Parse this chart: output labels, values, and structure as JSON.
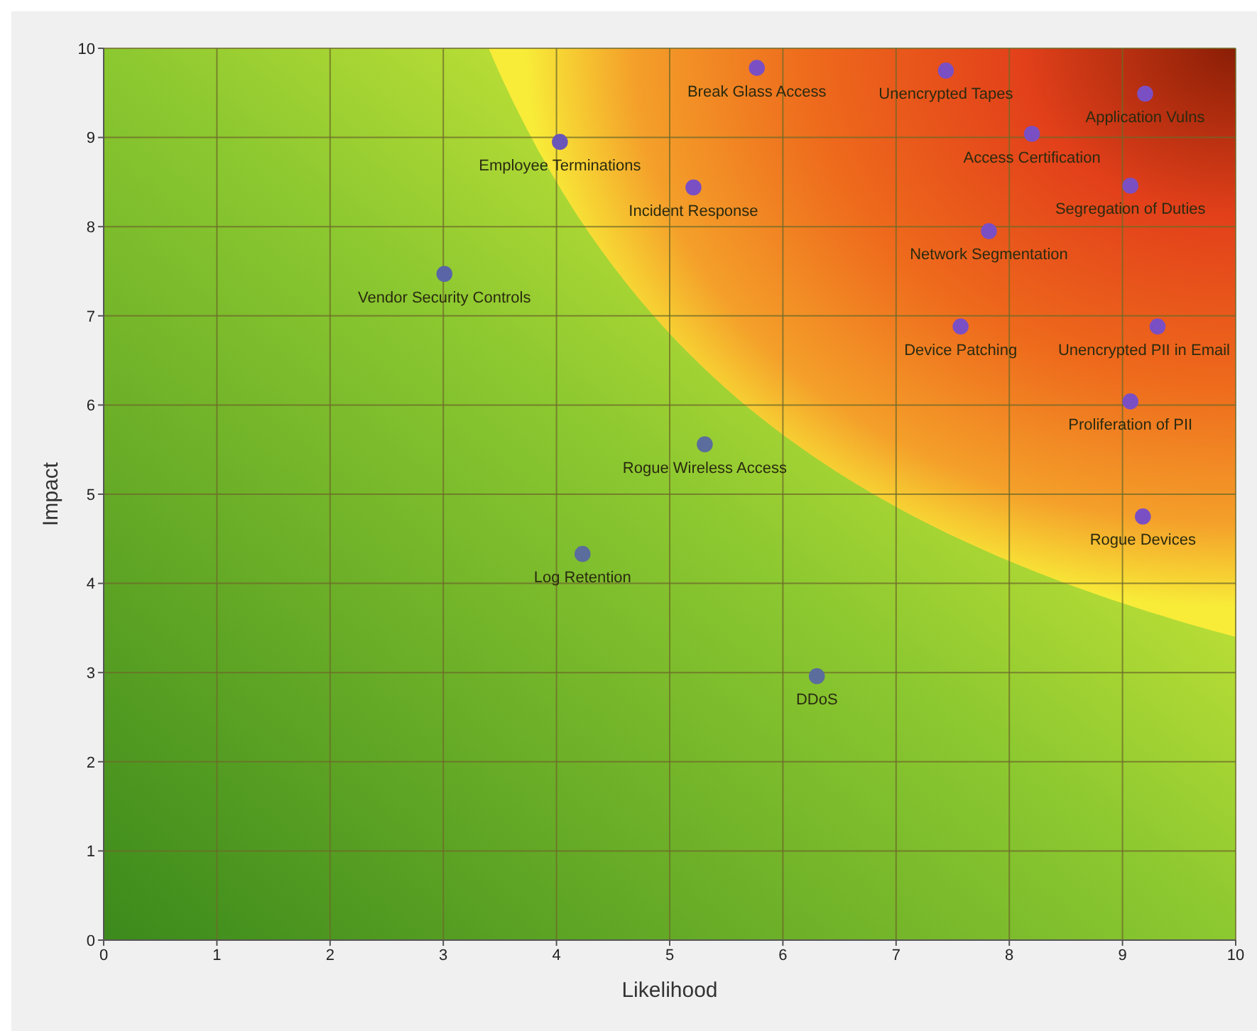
{
  "chart_data": {
    "type": "scatter",
    "xlabel": "Likelihood",
    "ylabel": "Impact",
    "x": [
      5.77,
      7.44,
      9.2,
      8.2,
      4.03,
      5.21,
      9.07,
      7.82,
      3.01,
      7.57,
      9.31,
      9.07,
      5.31,
      9.18,
      4.23,
      6.3
    ],
    "values": [
      9.78,
      9.75,
      9.49,
      9.04,
      8.95,
      8.44,
      8.46,
      7.95,
      7.47,
      6.88,
      6.88,
      6.04,
      5.56,
      4.75,
      4.33,
      2.96
    ],
    "value_labels": [
      "Break Glass Access",
      "Unencrypted Tapes",
      "Application Vulns",
      "Access Certification",
      "Employee Terminations",
      "Incident Response",
      "Segregation of Duties",
      "Network Segmentation",
      "Vendor Security Controls",
      "Device Patching",
      "Unencrypted PII in Email",
      "Proliferation of PII",
      "Rogue Wireless Access",
      "Rogue Devices",
      "Log Retention",
      "DDoS"
    ],
    "colors": [
      "#7b4fc4",
      "#7b4fc4",
      "#7b4fc4",
      "#7b4fc4",
      "#6a55b8",
      "#7b4fc4",
      "#7b4fc4",
      "#7b4fc4",
      "#5a65a8",
      "#7b4fc4",
      "#7b4fc4",
      "#7b4fc4",
      "#5a6d9c",
      "#7b4fc4",
      "#5a6d9c",
      "#5a6d9c"
    ],
    "xlim": [
      0,
      10
    ],
    "ylim": [
      0,
      10
    ],
    "xticks": [
      0,
      1,
      2,
      3,
      4,
      5,
      6,
      7,
      8,
      9,
      10
    ],
    "yticks": [
      0,
      1,
      2,
      3,
      4,
      5,
      6,
      7,
      8,
      9,
      10
    ],
    "grid": true,
    "marker": "circle"
  }
}
